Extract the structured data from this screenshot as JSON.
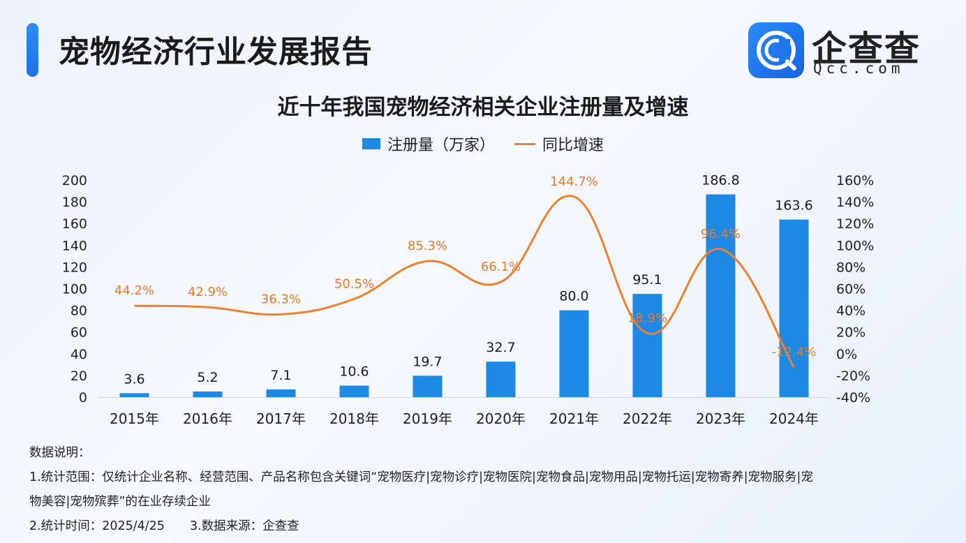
{
  "header": {
    "report_title": "宠物经济行业发展报告",
    "logo_name": "企查查",
    "logo_domain": "Qcc.com"
  },
  "chart_data": {
    "type": "bar",
    "title": "近十年我国宠物经济相关企业注册量及增速",
    "categories": [
      "2015年",
      "2016年",
      "2017年",
      "2018年",
      "2019年",
      "2020年",
      "2021年",
      "2022年",
      "2023年",
      "2024年"
    ],
    "series": [
      {
        "name": "注册量（万家）",
        "type": "bar",
        "axis": "left",
        "color": "#1e88e5",
        "values": [
          3.6,
          5.2,
          7.1,
          10.6,
          19.7,
          32.7,
          80.0,
          95.1,
          186.8,
          163.6
        ],
        "labels": [
          "3.6",
          "5.2",
          "7.1",
          "10.6",
          "19.7",
          "32.7",
          "80.0",
          "95.1",
          "186.8",
          "163.6"
        ]
      },
      {
        "name": "同比增速",
        "type": "line",
        "axis": "right",
        "color": "#f07f2e",
        "values": [
          44.2,
          42.9,
          36.3,
          50.5,
          85.3,
          66.1,
          144.7,
          18.9,
          96.4,
          -12.4
        ],
        "labels": [
          "44.2%",
          "42.9%",
          "36.3%",
          "50.5%",
          "85.3%",
          "66.1%",
          "144.7%",
          "18.9%",
          "96.4%",
          "-12.4%"
        ]
      }
    ],
    "left_axis": {
      "ylim": [
        0,
        200
      ],
      "ticks": [
        0,
        20,
        40,
        60,
        80,
        100,
        120,
        140,
        160,
        180,
        200
      ],
      "tick_labels": [
        "0",
        "20",
        "40",
        "60",
        "80",
        "100",
        "120",
        "140",
        "160",
        "180",
        "200"
      ]
    },
    "right_axis": {
      "ylim": [
        -40,
        160
      ],
      "ticks": [
        -40,
        -20,
        0,
        20,
        40,
        60,
        80,
        100,
        120,
        140,
        160
      ],
      "tick_labels": [
        "-40%",
        "-20%",
        "0%",
        "20%",
        "40%",
        "60%",
        "80%",
        "100%",
        "120%",
        "140%",
        "160%"
      ]
    },
    "legend_position": "top-center",
    "grid": false
  },
  "notes": {
    "heading": "数据说明：",
    "item1_line1": "1.统计范围：仅统计企业名称、经营范围、产品名称包含关键词“宠物医疗|宠物诊疗|宠物医院|宠物食品|宠物用品|宠物托运|宠物寄养|宠物服务|宠",
    "item1_line2": "物美容|宠物殡葬”的在业存续企业",
    "item2": "2.统计时间：2025/4/25",
    "item3": "3.数据来源：企查查"
  }
}
